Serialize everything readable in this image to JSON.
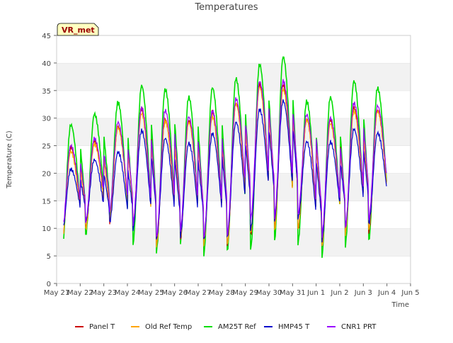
{
  "chart_data": {
    "type": "line",
    "title": "Temperatures",
    "xlabel": "Time",
    "ylabel": "Temperature (C)",
    "badge": "VR_met",
    "ylim": [
      0,
      45
    ],
    "yticks": [
      0,
      5,
      10,
      15,
      20,
      25,
      30,
      35,
      40,
      45
    ],
    "xlim": [
      "2024-05-21",
      "2024-06-05"
    ],
    "xticks": [
      "May 21",
      "May 22",
      "May 23",
      "May 24",
      "May 25",
      "May 26",
      "May 27",
      "May 28",
      "May 29",
      "May 30",
      "May 31",
      "Jun 1",
      "Jun 2",
      "Jun 3",
      "Jun 4",
      "Jun 5"
    ],
    "grid": "horizontal bands",
    "legend_position": "bottom",
    "x_dates": [
      "May 21",
      "May 22",
      "May 23",
      "May 24",
      "May 25",
      "May 26",
      "May 27",
      "May 28",
      "May 29",
      "May 30",
      "May 31",
      "Jun 1",
      "Jun 2",
      "Jun 3",
      "Jun 4"
    ],
    "series": [
      {
        "name": "Panel T",
        "color": "#cc0000",
        "daily_min": [
          7.5,
          10.0,
          11.0,
          10.0,
          7.0,
          7.5,
          7.0,
          7.0,
          9.0,
          9.5,
          10.0,
          6.0,
          9.0,
          9.5,
          12.0
        ],
        "daily_max": [
          24.5,
          26.0,
          28.5,
          31.5,
          30.0,
          29.5,
          31.0,
          33.0,
          36.0,
          36.0,
          30.0,
          29.5,
          32.0,
          31.5,
          12.0
        ]
      },
      {
        "name": "Old Ref Temp",
        "color": "#ffa500",
        "daily_min": [
          7.5,
          10.0,
          11.0,
          10.0,
          7.0,
          7.5,
          7.0,
          7.0,
          9.0,
          9.5,
          10.0,
          6.0,
          9.0,
          9.5,
          12.0
        ],
        "daily_max": [
          24.0,
          25.5,
          28.0,
          31.0,
          29.5,
          29.0,
          30.5,
          32.5,
          35.5,
          35.5,
          29.5,
          29.0,
          31.5,
          31.0,
          12.0
        ]
      },
      {
        "name": "AM25T Ref",
        "color": "#00dd00",
        "daily_min": [
          6.0,
          8.5,
          11.0,
          7.0,
          5.5,
          7.0,
          5.0,
          5.5,
          6.5,
          7.5,
          7.0,
          4.5,
          6.5,
          7.5,
          11.0
        ],
        "daily_max": [
          29.0,
          30.5,
          33.0,
          36.0,
          35.0,
          34.0,
          35.5,
          37.0,
          40.0,
          41.0,
          33.0,
          34.0,
          36.5,
          35.5,
          11.0
        ]
      },
      {
        "name": "HMP45 T",
        "color": "#0000cc",
        "daily_min": [
          9.0,
          11.0,
          11.0,
          9.5,
          8.0,
          8.5,
          7.5,
          8.5,
          10.0,
          11.0,
          12.0,
          7.5,
          10.0,
          11.0,
          13.0
        ],
        "daily_max": [
          20.5,
          22.5,
          24.0,
          27.5,
          26.5,
          25.5,
          27.0,
          29.5,
          31.5,
          33.0,
          26.0,
          25.5,
          28.0,
          27.5,
          13.0
        ]
      },
      {
        "name": "CNR1 PRT",
        "color": "#9900ff",
        "daily_min": [
          9.0,
          11.5,
          12.5,
          10.5,
          8.5,
          9.0,
          8.0,
          9.0,
          11.5,
          12.0,
          12.5,
          8.0,
          10.0,
          11.5,
          13.5
        ],
        "daily_max": [
          25.0,
          26.5,
          29.0,
          32.0,
          31.5,
          30.0,
          31.5,
          33.5,
          36.5,
          37.0,
          30.5,
          30.0,
          33.0,
          32.0,
          13.5
        ]
      }
    ]
  }
}
